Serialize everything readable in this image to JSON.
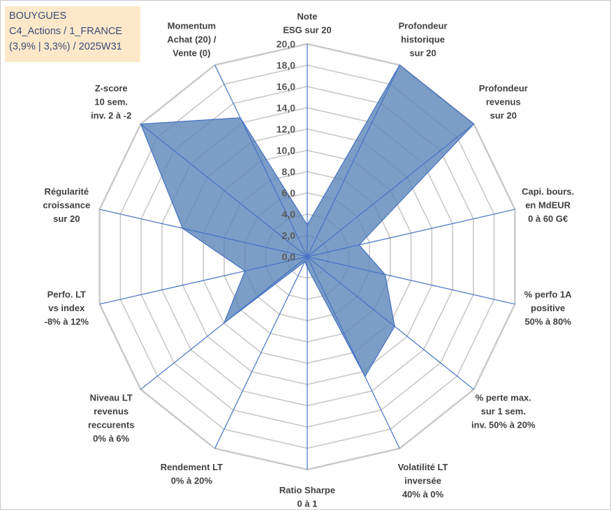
{
  "info": {
    "line1": "BOUYGUES",
    "line2": "C4_Actions / 1_FRANCE",
    "line3": "(3,9% | 3,3%) / 2025W31"
  },
  "chart_data": {
    "type": "radar",
    "rmin": 0,
    "rmax": 20,
    "tick_step": 2,
    "tick_labels": [
      "0,0",
      "2,0",
      "4,0",
      "6,0",
      "8,0",
      "10,0",
      "12,0",
      "14,0",
      "16,0",
      "18,0",
      "20,0"
    ],
    "axes": [
      {
        "label": [
          "Note",
          "ESG sur 20"
        ]
      },
      {
        "label": [
          "Profondeur",
          "historique",
          "sur 20"
        ]
      },
      {
        "label": [
          "Profondeur",
          "revenus",
          "sur 20"
        ]
      },
      {
        "label": [
          "Capi. bours.",
          "en MdEUR",
          "0 à 60 G€"
        ]
      },
      {
        "label": [
          "% perfo 1A",
          "positive",
          "50% à 80%"
        ]
      },
      {
        "label": [
          "% perte max.",
          "sur 1 sem.",
          "inv. 50% à 20%"
        ]
      },
      {
        "label": [
          "Volatilité LT",
          "inversée",
          "40% à 0%"
        ]
      },
      {
        "label": [
          "Ratio Sharpe",
          "0 à 1"
        ]
      },
      {
        "label": [
          "Rendement LT",
          "0% à 20%"
        ]
      },
      {
        "label": [
          "Niveau LT",
          "revenus",
          "reccurents",
          "0% à 6%"
        ]
      },
      {
        "label": [
          "Perfo. LT",
          "vs index",
          "-8% à 12%"
        ]
      },
      {
        "label": [
          "Régularité",
          "croissance",
          "sur 20"
        ]
      },
      {
        "label": [
          "Z-score",
          "10 sem.",
          "inv. 2 à -2"
        ]
      },
      {
        "label": [
          "Momentum",
          "Achat (20) /",
          "Vente (0)"
        ]
      }
    ],
    "values": [
      3.0,
      20.0,
      20.0,
      5.0,
      7.5,
      10.5,
      12.5,
      1.0,
      0.5,
      10.0,
      6.0,
      12.0,
      20.0,
      14.5
    ],
    "colors": {
      "fill": "#5b84b8",
      "fill_opacity": 0.8,
      "stroke": "#4472c4",
      "grid": "#c8c8c8",
      "spoke": "#4472c4"
    }
  }
}
